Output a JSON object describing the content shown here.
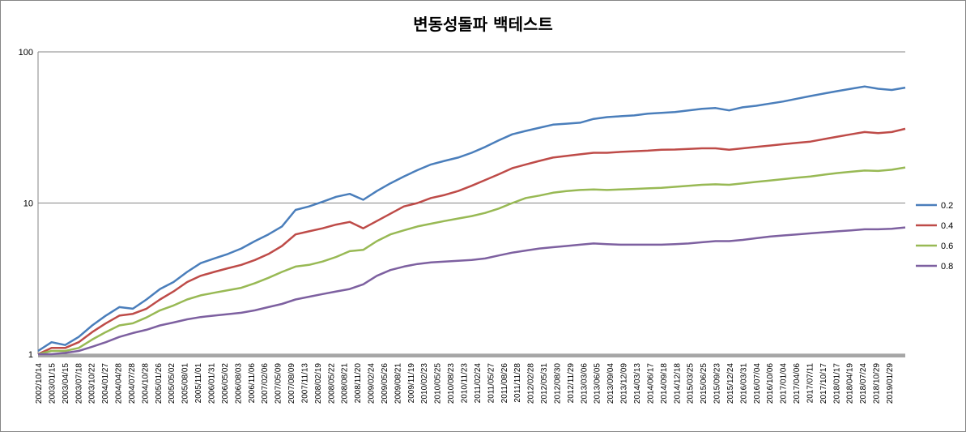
{
  "chart_data": {
    "type": "line",
    "title": "변동성돌파 백테스트",
    "xlabel": "",
    "ylabel": "",
    "y_scale": "log",
    "ylim": [
      1,
      100
    ],
    "y_ticks": [
      "1",
      "10",
      "100"
    ],
    "grid": "horizontal",
    "legend_position": "right",
    "x_tick_labels": [
      "2002/10/14",
      "2003/01/15",
      "2003/04/15",
      "2003/07/18",
      "2003/10/22",
      "2004/01/27",
      "2004/04/28",
      "2004/07/28",
      "2004/10/28",
      "2005/01/26",
      "2005/05/02",
      "2005/08/01",
      "2005/11/01",
      "2006/01/31",
      "2006/05/02",
      "2006/08/03",
      "2006/11/06",
      "2007/02/06",
      "2007/05/09",
      "2007/08/09",
      "2007/11/13",
      "2008/02/19",
      "2008/05/22",
      "2008/08/21",
      "2008/11/20",
      "2009/02/24",
      "2009/05/26",
      "2009/08/21",
      "2009/11/19",
      "2010/02/23",
      "2010/05/25",
      "2010/08/23",
      "2010/11/23",
      "2011/02/24",
      "2011/05/27",
      "2011/08/26",
      "2011/11/28",
      "2012/02/28",
      "2012/05/31",
      "2012/08/30",
      "2012/11/29",
      "2013/03/06",
      "2013/06/05",
      "2013/09/04",
      "2013/12/09",
      "2014/03/13",
      "2014/06/17",
      "2014/09/18",
      "2014/12/18",
      "2015/03/25",
      "2015/06/25",
      "2015/09/23",
      "2015/12/24",
      "2016/03/31",
      "2016/07/04",
      "2016/10/06",
      "2017/01/04",
      "2017/04/06",
      "2017/07/11",
      "2017/10/17",
      "2018/01/17",
      "2018/04/19",
      "2018/07/24",
      "2018/10/29",
      "2019/01/29"
    ],
    "series": [
      {
        "name": "0.2",
        "color": "#4A7EBB",
        "values": [
          1.05,
          1.2,
          1.15,
          1.3,
          1.55,
          1.8,
          2.05,
          2.0,
          2.3,
          2.7,
          3.0,
          3.5,
          4.0,
          4.3,
          4.6,
          5.0,
          5.6,
          6.2,
          7.0,
          9.0,
          9.5,
          10.2,
          11.0,
          11.5,
          10.5,
          12.0,
          13.5,
          15.0,
          16.5,
          18.0,
          19.0,
          20.0,
          21.5,
          23.5,
          26.0,
          28.5,
          30.0,
          31.5,
          33.0,
          33.5,
          34.0,
          36.0,
          37.0,
          37.5,
          38.0,
          39.0,
          39.5,
          40.0,
          41.0,
          42.0,
          42.5,
          41.0,
          43.0,
          44.0,
          45.5,
          47.0,
          49.0,
          51.0,
          53.0,
          55.0,
          57.0,
          59.0,
          57.0,
          56.0,
          58.0
        ]
      },
      {
        "name": "0.4",
        "color": "#BE4B48",
        "values": [
          1.0,
          1.1,
          1.1,
          1.2,
          1.4,
          1.6,
          1.8,
          1.85,
          2.0,
          2.3,
          2.6,
          3.0,
          3.3,
          3.5,
          3.7,
          3.9,
          4.2,
          4.6,
          5.2,
          6.2,
          6.5,
          6.8,
          7.2,
          7.5,
          6.8,
          7.6,
          8.5,
          9.5,
          10.0,
          10.8,
          11.3,
          12.0,
          13.0,
          14.2,
          15.5,
          17.0,
          18.0,
          19.0,
          20.0,
          20.5,
          21.0,
          21.5,
          21.5,
          21.8,
          22.0,
          22.2,
          22.5,
          22.6,
          22.8,
          23.0,
          23.0,
          22.5,
          23.0,
          23.5,
          24.0,
          24.5,
          25.0,
          25.5,
          26.5,
          27.5,
          28.5,
          29.5,
          29.0,
          29.5,
          31.0
        ]
      },
      {
        "name": "0.6",
        "color": "#98B954",
        "values": [
          1.0,
          1.05,
          1.05,
          1.1,
          1.25,
          1.4,
          1.55,
          1.6,
          1.75,
          1.95,
          2.1,
          2.3,
          2.45,
          2.55,
          2.65,
          2.75,
          2.95,
          3.2,
          3.5,
          3.8,
          3.9,
          4.1,
          4.4,
          4.8,
          4.9,
          5.6,
          6.2,
          6.6,
          7.0,
          7.3,
          7.6,
          7.9,
          8.2,
          8.6,
          9.2,
          10.0,
          10.8,
          11.2,
          11.7,
          12.0,
          12.2,
          12.3,
          12.2,
          12.3,
          12.4,
          12.5,
          12.6,
          12.8,
          13.0,
          13.2,
          13.3,
          13.2,
          13.5,
          13.8,
          14.1,
          14.4,
          14.7,
          15.0,
          15.4,
          15.8,
          16.1,
          16.4,
          16.3,
          16.6,
          17.2
        ]
      },
      {
        "name": "0.8",
        "color": "#7D60A0",
        "values": [
          1.0,
          1.0,
          1.02,
          1.05,
          1.12,
          1.2,
          1.3,
          1.38,
          1.45,
          1.55,
          1.62,
          1.7,
          1.76,
          1.8,
          1.84,
          1.88,
          1.95,
          2.05,
          2.15,
          2.3,
          2.4,
          2.5,
          2.6,
          2.7,
          2.9,
          3.3,
          3.6,
          3.8,
          3.95,
          4.05,
          4.1,
          4.15,
          4.2,
          4.3,
          4.5,
          4.7,
          4.85,
          5.0,
          5.1,
          5.2,
          5.3,
          5.4,
          5.35,
          5.3,
          5.3,
          5.3,
          5.3,
          5.35,
          5.4,
          5.5,
          5.6,
          5.6,
          5.7,
          5.85,
          6.0,
          6.1,
          6.2,
          6.3,
          6.4,
          6.5,
          6.6,
          6.7,
          6.7,
          6.75,
          6.9
        ]
      }
    ]
  }
}
